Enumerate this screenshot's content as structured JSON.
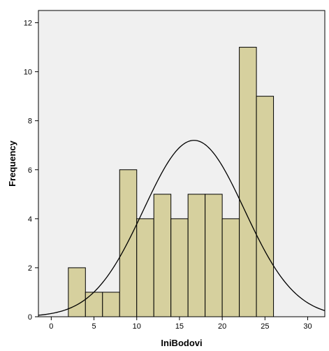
{
  "chart_data": {
    "type": "bar",
    "title": "",
    "xlabel": "IniBodovi",
    "ylabel": "Frequency",
    "xlim": [
      -1.5,
      32
    ],
    "ylim": [
      0,
      12.5
    ],
    "xticks": [
      0,
      5,
      10,
      15,
      20,
      25,
      30
    ],
    "yticks": [
      0,
      2,
      4,
      6,
      8,
      10,
      12
    ],
    "bin_width": 2,
    "bins": [
      {
        "start": 2,
        "end": 4,
        "value": 2
      },
      {
        "start": 4,
        "end": 6,
        "value": 1
      },
      {
        "start": 6,
        "end": 8,
        "value": 1
      },
      {
        "start": 8,
        "end": 10,
        "value": 6
      },
      {
        "start": 10,
        "end": 12,
        "value": 4
      },
      {
        "start": 12,
        "end": 14,
        "value": 5
      },
      {
        "start": 14,
        "end": 16,
        "value": 4
      },
      {
        "start": 16,
        "end": 18,
        "value": 5
      },
      {
        "start": 18,
        "end": 20,
        "value": 5
      },
      {
        "start": 20,
        "end": 22,
        "value": 4
      },
      {
        "start": 22,
        "end": 24,
        "value": 11
      },
      {
        "start": 24,
        "end": 26,
        "value": 9
      }
    ],
    "normal_curve": {
      "mean": 16.7,
      "sd": 5.9,
      "peak": 7.2
    },
    "grid": false,
    "legend": "none",
    "colors": {
      "bar_fill": "#d6d09e",
      "bar_stroke": "#000000",
      "plot_bg": "#f0f0f0",
      "curve": "#000000"
    }
  }
}
